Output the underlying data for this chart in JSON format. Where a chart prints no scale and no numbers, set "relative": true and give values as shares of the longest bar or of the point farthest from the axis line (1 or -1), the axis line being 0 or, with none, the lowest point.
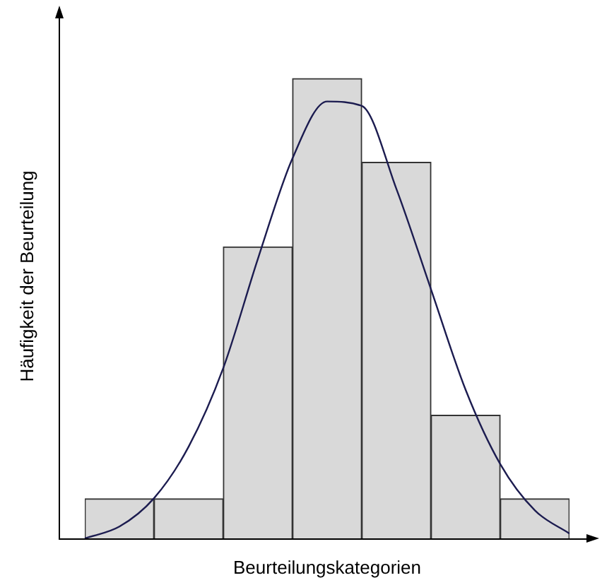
{
  "chart_data": [
    {
      "type": "bar",
      "relative": true,
      "xlabel": "Beurteilungskategorien",
      "ylabel": "Häufigkeit der Beurteilung",
      "categories": [
        null,
        null,
        null,
        null,
        null,
        null,
        null
      ],
      "series": [
        {
          "color": "#d9d9d9",
          "values": [
            0.086,
            0.086,
            0.634,
            1,
            0.818,
            0.268,
            0.086
          ]
        }
      ],
      "grid": false,
      "legend": false
    },
    {
      "type": "line",
      "relative": true,
      "categories": [
        null,
        null,
        null,
        null,
        null,
        null,
        null,
        null,
        null,
        null,
        null,
        null,
        null,
        null,
        null
      ],
      "series": [
        {
          "color": "#1c1c50",
          "values": [
            0,
            0.027,
            0.092,
            0.21,
            0.39,
            0.64,
            0.87,
            1,
            0.99,
            0.8,
            0.57,
            0.34,
            0.17,
            0.064,
            0.011
          ]
        }
      ],
      "grid": false,
      "legend": false,
      "marker": "none",
      "line_style": "solid"
    }
  ]
}
